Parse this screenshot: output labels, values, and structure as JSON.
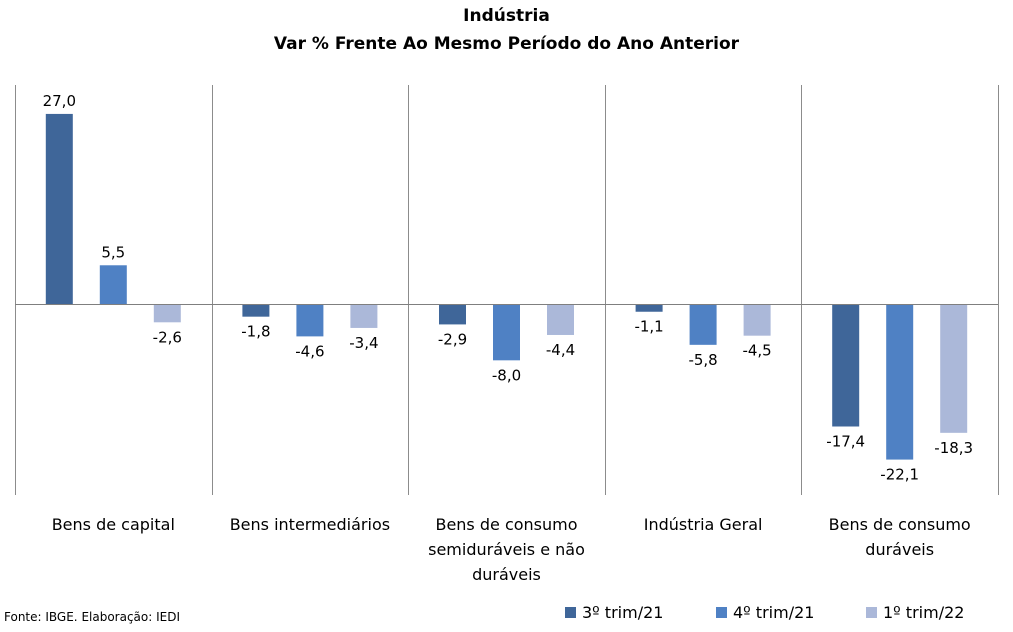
{
  "chart_data": {
    "type": "bar",
    "title": "Indústria",
    "subtitle": "Var % Frente Ao Mesmo Período do Ano Anterior",
    "categories": [
      [
        "Bens de capital"
      ],
      [
        "Bens intermediários"
      ],
      [
        "Bens de consumo",
        "semiduráveis e não",
        "duráveis"
      ],
      [
        "Indústria Geral"
      ],
      [
        "Bens de consumo",
        "duráveis"
      ]
    ],
    "series": [
      {
        "name": "3º trim/21",
        "color": "#3f6699",
        "values": [
          27.0,
          -1.8,
          -2.9,
          -1.1,
          -17.4
        ]
      },
      {
        "name": "4º trim/21",
        "color": "#4f81c4",
        "values": [
          5.5,
          -4.6,
          -8.0,
          -5.8,
          -22.1
        ]
      },
      {
        "name": "1º trim/22",
        "color": "#abb8d9",
        "values": [
          -2.6,
          -3.4,
          -4.4,
          -4.5,
          -18.3
        ]
      }
    ],
    "value_labels": [
      [
        "27,0",
        "-1,8",
        "-2,9",
        "-1,1",
        "-17,4"
      ],
      [
        "5,5",
        "-4,6",
        "-8,0",
        "-5,8",
        "-22,1"
      ],
      [
        "-2,6",
        "-3,4",
        "-4,4",
        "-4,5",
        "-18,3"
      ]
    ],
    "ylim": [
      -27,
      31
    ],
    "grid": false,
    "legend_position": "bottom-right",
    "source": "Fonte: IBGE. Elaboração: IEDI"
  }
}
